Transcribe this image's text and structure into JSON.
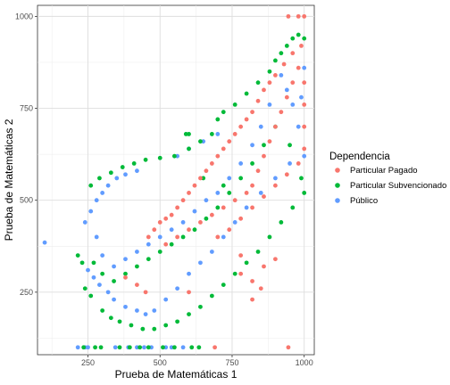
{
  "chart_data": {
    "type": "scatter",
    "xlabel": "Prueba de Matemáticas 1",
    "ylabel": "Prueba de Matemáticas 2",
    "xlim": [
      75,
      1035
    ],
    "ylim": [
      80,
      1030
    ],
    "x_ticks": [
      250,
      500,
      750,
      1000
    ],
    "y_ticks": [
      250,
      500,
      750,
      1000
    ],
    "x_tick_labels": [
      "250",
      "500",
      "750",
      "1000"
    ],
    "y_tick_labels": [
      "250",
      "500",
      "750",
      "1000"
    ],
    "grid": true,
    "legend_position": "right",
    "legend": {
      "title": "Dependencia",
      "entries": [
        "Particular Pagado",
        "Particular Subvencionado",
        "Público"
      ]
    },
    "colors": {
      "Particular Pagado": "#F8766D",
      "Particular Subvencionado": "#00BA38",
      "Público": "#619CFF"
    },
    "series": [
      {
        "name": "Público",
        "points": [
          [
            100,
            385
          ],
          [
            215,
            100
          ],
          [
            240,
            100
          ],
          [
            250,
            100
          ],
          [
            345,
            100
          ],
          [
            390,
            100
          ],
          [
            420,
            100
          ],
          [
            445,
            100
          ],
          [
            470,
            100
          ],
          [
            520,
            100
          ],
          [
            540,
            100
          ],
          [
            580,
            100
          ],
          [
            240,
            440
          ],
          [
            260,
            470
          ],
          [
            280,
            500
          ],
          [
            300,
            520
          ],
          [
            320,
            540
          ],
          [
            350,
            560
          ],
          [
            380,
            570
          ],
          [
            420,
            580
          ],
          [
            250,
            310
          ],
          [
            270,
            290
          ],
          [
            290,
            270
          ],
          [
            320,
            250
          ],
          [
            340,
            230
          ],
          [
            380,
            210
          ],
          [
            420,
            200
          ],
          [
            450,
            190
          ],
          [
            480,
            200
          ],
          [
            520,
            230
          ],
          [
            560,
            260
          ],
          [
            600,
            300
          ],
          [
            640,
            330
          ],
          [
            680,
            360
          ],
          [
            720,
            400
          ],
          [
            760,
            440
          ],
          [
            800,
            480
          ],
          [
            850,
            520
          ],
          [
            900,
            560
          ],
          [
            950,
            600
          ],
          [
            1000,
            620
          ],
          [
            980,
            700
          ],
          [
            960,
            760
          ],
          [
            940,
            800
          ],
          [
            850,
            700
          ],
          [
            820,
            650
          ],
          [
            780,
            600
          ],
          [
            740,
            560
          ],
          [
            700,
            520
          ],
          [
            660,
            500
          ],
          [
            620,
            470
          ],
          [
            580,
            440
          ],
          [
            540,
            420
          ],
          [
            500,
            400
          ],
          [
            460,
            380
          ],
          [
            420,
            360
          ],
          [
            380,
            340
          ],
          [
            340,
            320
          ],
          [
            300,
            350
          ],
          [
            280,
            400
          ],
          [
            560,
            620
          ],
          [
            600,
            640
          ],
          [
            650,
            660
          ],
          [
            700,
            680
          ],
          [
            880,
            760
          ],
          [
            920,
            840
          ],
          [
            1000,
            860
          ],
          [
            990,
            780
          ]
        ]
      },
      {
        "name": "Particular Subvencionado",
        "points": [
          [
            215,
            350
          ],
          [
            230,
            330
          ],
          [
            235,
            100
          ],
          [
            275,
            100
          ],
          [
            295,
            100
          ],
          [
            360,
            100
          ],
          [
            395,
            100
          ],
          [
            430,
            100
          ],
          [
            460,
            100
          ],
          [
            510,
            100
          ],
          [
            550,
            100
          ],
          [
            610,
            100
          ],
          [
            635,
            100
          ],
          [
            260,
            540
          ],
          [
            290,
            560
          ],
          [
            330,
            575
          ],
          [
            370,
            590
          ],
          [
            410,
            600
          ],
          [
            450,
            610
          ],
          [
            500,
            615
          ],
          [
            550,
            620
          ],
          [
            600,
            640
          ],
          [
            640,
            660
          ],
          [
            680,
            680
          ],
          [
            700,
            720
          ],
          [
            720,
            740
          ],
          [
            760,
            760
          ],
          [
            800,
            790
          ],
          [
            840,
            820
          ],
          [
            880,
            850
          ],
          [
            900,
            880
          ],
          [
            920,
            900
          ],
          [
            940,
            920
          ],
          [
            960,
            940
          ],
          [
            980,
            950
          ],
          [
            1000,
            940
          ],
          [
            240,
            260
          ],
          [
            260,
            240
          ],
          [
            300,
            200
          ],
          [
            330,
            180
          ],
          [
            360,
            170
          ],
          [
            400,
            160
          ],
          [
            440,
            150
          ],
          [
            480,
            150
          ],
          [
            520,
            160
          ],
          [
            560,
            170
          ],
          [
            600,
            190
          ],
          [
            640,
            210
          ],
          [
            680,
            240
          ],
          [
            720,
            270
          ],
          [
            760,
            300
          ],
          [
            800,
            330
          ],
          [
            840,
            360
          ],
          [
            880,
            400
          ],
          [
            920,
            440
          ],
          [
            960,
            480
          ],
          [
            1000,
            520
          ],
          [
            990,
            560
          ],
          [
            950,
            650
          ],
          [
            900,
            700
          ],
          [
            860,
            650
          ],
          [
            820,
            600
          ],
          [
            780,
            560
          ],
          [
            740,
            520
          ],
          [
            700,
            480
          ],
          [
            660,
            450
          ],
          [
            620,
            420
          ],
          [
            580,
            400
          ],
          [
            540,
            380
          ],
          [
            500,
            360
          ],
          [
            460,
            340
          ],
          [
            420,
            320
          ],
          [
            380,
            300
          ],
          [
            340,
            280
          ],
          [
            300,
            300
          ],
          [
            270,
            330
          ],
          [
            600,
            680
          ],
          [
            590,
            680
          ],
          [
            720,
            540
          ],
          [
            650,
            560
          ]
        ]
      },
      {
        "name": "Particular Pagado",
        "points": [
          [
            690,
            100
          ],
          [
            945,
            100
          ],
          [
            945,
            1000
          ],
          [
            980,
            1000
          ],
          [
            1000,
            1000
          ],
          [
            990,
            920
          ],
          [
            960,
            900
          ],
          [
            930,
            870
          ],
          [
            900,
            840
          ],
          [
            880,
            820
          ],
          [
            860,
            800
          ],
          [
            840,
            770
          ],
          [
            820,
            740
          ],
          [
            800,
            720
          ],
          [
            780,
            700
          ],
          [
            760,
            680
          ],
          [
            740,
            660
          ],
          [
            720,
            640
          ],
          [
            700,
            620
          ],
          [
            680,
            600
          ],
          [
            660,
            580
          ],
          [
            640,
            560
          ],
          [
            620,
            540
          ],
          [
            600,
            520
          ],
          [
            580,
            500
          ],
          [
            560,
            480
          ],
          [
            540,
            460
          ],
          [
            520,
            450
          ],
          [
            500,
            440
          ],
          [
            480,
            420
          ],
          [
            460,
            400
          ],
          [
            700,
            400
          ],
          [
            740,
            420
          ],
          [
            780,
            450
          ],
          [
            820,
            480
          ],
          [
            860,
            510
          ],
          [
            900,
            540
          ],
          [
            940,
            570
          ],
          [
            980,
            600
          ],
          [
            1000,
            640
          ],
          [
            1000,
            700
          ],
          [
            1000,
            760
          ],
          [
            1000,
            820
          ],
          [
            980,
            860
          ],
          [
            960,
            820
          ],
          [
            940,
            780
          ],
          [
            920,
            740
          ],
          [
            900,
            700
          ],
          [
            880,
            660
          ],
          [
            860,
            620
          ],
          [
            840,
            580
          ],
          [
            820,
            540
          ],
          [
            800,
            520
          ],
          [
            760,
            500
          ],
          [
            720,
            480
          ],
          [
            680,
            460
          ],
          [
            640,
            440
          ],
          [
            600,
            420
          ],
          [
            560,
            400
          ],
          [
            520,
            380
          ],
          [
            780,
            300
          ],
          [
            820,
            280
          ],
          [
            860,
            320
          ],
          [
            900,
            340
          ],
          [
            850,
            260
          ],
          [
            820,
            230
          ],
          [
            780,
            350
          ],
          [
            600,
            250
          ],
          [
            450,
            250
          ],
          [
            420,
            270
          ],
          [
            380,
            290
          ]
        ]
      }
    ]
  }
}
